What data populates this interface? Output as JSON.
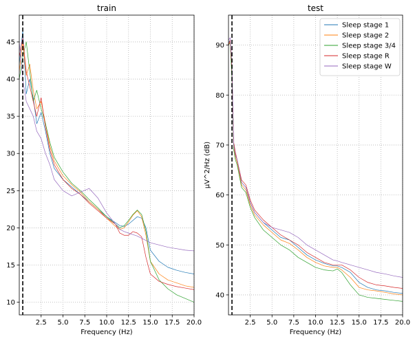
{
  "chart_data": [
    {
      "type": "line",
      "title": "train",
      "xlabel": "Frequency (Hz)",
      "ylabel": "",
      "xlim": [
        0.0,
        20.0
      ],
      "ylim": [
        8.3,
        48.6
      ],
      "xticks": [
        2.5,
        5.0,
        7.5,
        10.0,
        12.5,
        15.0,
        17.5,
        20.0
      ],
      "xtick_labels": [
        "2.5",
        "5.0",
        "7.5",
        "10.0",
        "12.5",
        "15.0",
        "17.5",
        "20.0"
      ],
      "yticks": [
        10,
        15,
        20,
        25,
        30,
        35,
        40,
        45
      ],
      "ytick_labels": [
        "10",
        "15",
        "20",
        "25",
        "30",
        "35",
        "40",
        "45"
      ],
      "grid": true,
      "vline_x": 0.4,
      "legend": false,
      "series": [
        {
          "color": "#1f77b4",
          "x": [
            0.0,
            0.4,
            0.8,
            1.2,
            1.6,
            2.0,
            2.5,
            3.0,
            3.5,
            4.0,
            5.0,
            6.0,
            7.0,
            8.0,
            9.0,
            10.0,
            11.0,
            11.5,
            12.0,
            12.5,
            13.0,
            13.5,
            14.0,
            14.5,
            15.0,
            16.0,
            17.0,
            18.0,
            19.0,
            20.0
          ],
          "y": [
            42.0,
            46.5,
            38.0,
            40.0,
            37.5,
            34.0,
            35.5,
            33.0,
            30.0,
            28.0,
            26.5,
            25.5,
            24.5,
            23.5,
            22.5,
            21.5,
            20.7,
            20.3,
            20.2,
            20.5,
            21.0,
            21.5,
            21.3,
            20.0,
            17.0,
            15.5,
            14.7,
            14.3,
            14.0,
            13.8
          ]
        },
        {
          "color": "#ff7f0e",
          "x": [
            0.0,
            0.4,
            0.8,
            1.2,
            1.6,
            2.0,
            2.5,
            3.0,
            3.5,
            4.0,
            5.0,
            6.0,
            7.0,
            8.0,
            9.0,
            10.0,
            11.0,
            11.5,
            12.0,
            12.5,
            13.0,
            13.5,
            14.0,
            14.5,
            15.0,
            16.0,
            17.0,
            18.0,
            19.0,
            20.0
          ],
          "y": [
            41.0,
            45.0,
            40.5,
            42.0,
            38.5,
            36.0,
            37.0,
            34.0,
            31.0,
            29.0,
            27.0,
            25.8,
            24.8,
            23.5,
            22.5,
            21.3,
            20.2,
            19.8,
            20.0,
            20.8,
            21.7,
            22.3,
            21.5,
            19.0,
            15.5,
            13.8,
            13.0,
            12.6,
            12.2,
            12.0
          ]
        },
        {
          "color": "#2ca02c",
          "x": [
            0.0,
            0.4,
            0.8,
            1.2,
            1.6,
            2.0,
            2.5,
            3.0,
            3.5,
            4.0,
            5.0,
            6.0,
            7.0,
            8.0,
            9.0,
            10.0,
            11.0,
            11.5,
            12.0,
            12.5,
            13.0,
            13.5,
            14.0,
            14.5,
            15.0,
            16.0,
            17.0,
            18.0,
            19.0,
            20.0
          ],
          "y": [
            40.0,
            43.0,
            45.0,
            41.0,
            37.0,
            38.5,
            36.0,
            34.0,
            31.5,
            29.5,
            27.5,
            26.0,
            25.0,
            23.8,
            22.7,
            21.5,
            20.5,
            20.0,
            20.3,
            21.0,
            21.8,
            22.4,
            21.8,
            19.5,
            15.5,
            13.0,
            11.8,
            11.0,
            10.5,
            10.0
          ]
        },
        {
          "color": "#d62728",
          "x": [
            0.0,
            0.4,
            0.8,
            1.2,
            1.6,
            2.0,
            2.5,
            3.0,
            3.5,
            4.0,
            5.0,
            6.0,
            7.0,
            8.0,
            9.0,
            10.0,
            11.0,
            11.5,
            12.0,
            12.5,
            13.0,
            13.5,
            14.0,
            14.5,
            15.0,
            16.0,
            17.0,
            18.0,
            19.0,
            20.0
          ],
          "y": [
            43.0,
            45.5,
            41.0,
            39.0,
            37.0,
            35.0,
            37.5,
            33.5,
            30.5,
            28.5,
            26.5,
            25.3,
            24.5,
            23.3,
            22.3,
            21.3,
            20.5,
            19.3,
            19.0,
            19.0,
            19.5,
            19.3,
            18.8,
            16.0,
            13.8,
            12.8,
            12.4,
            12.1,
            11.9,
            11.7
          ]
        },
        {
          "color": "#9467bd",
          "x": [
            0.0,
            0.4,
            0.8,
            1.2,
            1.6,
            2.0,
            2.5,
            3.0,
            3.5,
            4.0,
            5.0,
            6.0,
            7.0,
            8.0,
            9.0,
            10.0,
            11.0,
            11.5,
            12.0,
            12.5,
            13.0,
            13.5,
            14.0,
            14.5,
            15.0,
            16.0,
            17.0,
            18.0,
            19.0,
            20.0
          ],
          "y": [
            45.0,
            40.0,
            37.0,
            36.0,
            35.0,
            33.0,
            32.0,
            30.0,
            28.5,
            26.5,
            25.0,
            24.3,
            24.8,
            25.3,
            24.0,
            22.0,
            20.5,
            19.8,
            19.5,
            19.3,
            19.1,
            18.9,
            18.6,
            18.3,
            18.0,
            17.7,
            17.4,
            17.2,
            17.0,
            16.9
          ]
        }
      ]
    },
    {
      "type": "line",
      "title": "test",
      "xlabel": "Frequency (Hz)",
      "ylabel": "µV^2/Hz (dB)",
      "xlim": [
        0.0,
        20.0
      ],
      "ylim": [
        36.0,
        96.0
      ],
      "xticks": [
        2.5,
        5.0,
        7.5,
        10.0,
        12.5,
        15.0,
        17.5,
        20.0
      ],
      "xtick_labels": [
        "2.5",
        "5.0",
        "7.5",
        "10.0",
        "12.5",
        "15.0",
        "17.5",
        "20.0"
      ],
      "yticks": [
        40,
        50,
        60,
        70,
        80,
        90
      ],
      "ytick_labels": [
        "40",
        "50",
        "60",
        "70",
        "80",
        "90"
      ],
      "grid": true,
      "vline_x": 0.4,
      "legend": true,
      "legend_position": "upper right",
      "series": [
        {
          "name": "Sleep stage 1",
          "color": "#1f77b4",
          "x": [
            0.0,
            0.2,
            0.4,
            0.6,
            0.8,
            1.0,
            1.5,
            2.0,
            2.5,
            3.0,
            4.0,
            5.0,
            6.0,
            7.0,
            8.0,
            9.0,
            10.0,
            11.0,
            12.0,
            12.5,
            13.0,
            14.0,
            15.0,
            16.0,
            17.0,
            18.0,
            19.0,
            20.0
          ],
          "y": [
            90.5,
            91.0,
            85.0,
            70.0,
            68.0,
            67.0,
            62.5,
            61.5,
            58.5,
            56.5,
            54.5,
            53.0,
            51.5,
            51.0,
            49.5,
            48.0,
            47.0,
            46.3,
            45.8,
            45.8,
            45.5,
            44.5,
            42.5,
            41.5,
            41.0,
            40.8,
            40.5,
            40.3
          ]
        },
        {
          "name": "Sleep stage 2",
          "color": "#ff7f0e",
          "x": [
            0.0,
            0.2,
            0.4,
            0.6,
            0.8,
            1.0,
            1.5,
            2.0,
            2.5,
            3.0,
            4.0,
            5.0,
            6.0,
            7.0,
            8.0,
            9.0,
            10.0,
            11.0,
            12.0,
            12.5,
            13.0,
            14.0,
            15.0,
            16.0,
            17.0,
            18.0,
            19.0,
            20.0
          ],
          "y": [
            90.0,
            91.0,
            84.0,
            69.5,
            67.5,
            66.5,
            62.0,
            61.0,
            58.0,
            56.0,
            54.0,
            52.5,
            51.0,
            50.3,
            49.0,
            47.5,
            46.5,
            45.8,
            45.5,
            45.5,
            45.0,
            43.5,
            41.5,
            41.0,
            40.8,
            40.5,
            40.2,
            40.0
          ]
        },
        {
          "name": "Sleep stage 3/4",
          "color": "#2ca02c",
          "x": [
            0.0,
            0.2,
            0.4,
            0.6,
            0.8,
            1.0,
            1.5,
            2.0,
            2.5,
            3.0,
            4.0,
            5.0,
            6.0,
            7.0,
            8.0,
            9.0,
            10.0,
            11.0,
            12.0,
            12.5,
            13.0,
            14.0,
            15.0,
            16.0,
            17.0,
            18.0,
            19.0,
            20.0
          ],
          "y": [
            90.0,
            90.5,
            83.0,
            69.0,
            67.0,
            66.0,
            61.5,
            60.5,
            57.5,
            55.5,
            53.0,
            51.5,
            50.0,
            49.0,
            47.5,
            46.5,
            45.5,
            45.0,
            44.8,
            45.2,
            44.5,
            42.0,
            40.0,
            39.5,
            39.3,
            39.1,
            38.9,
            38.7
          ]
        },
        {
          "name": "Sleep stage R",
          "color": "#d62728",
          "x": [
            0.0,
            0.2,
            0.4,
            0.6,
            0.8,
            1.0,
            1.5,
            2.0,
            2.5,
            3.0,
            4.0,
            5.0,
            6.0,
            7.0,
            8.0,
            9.0,
            10.0,
            11.0,
            12.0,
            12.5,
            13.0,
            14.0,
            15.0,
            16.0,
            17.0,
            18.0,
            19.0,
            20.0
          ],
          "y": [
            90.0,
            91.0,
            85.0,
            70.5,
            68.5,
            67.0,
            63.0,
            62.0,
            59.0,
            57.0,
            55.0,
            53.5,
            52.0,
            51.0,
            50.0,
            48.5,
            47.5,
            46.5,
            46.0,
            46.0,
            46.0,
            45.0,
            43.5,
            42.5,
            42.0,
            41.8,
            41.5,
            41.3
          ]
        },
        {
          "name": "Sleep stage W",
          "color": "#9467bd",
          "x": [
            0.0,
            0.2,
            0.4,
            0.6,
            0.8,
            1.0,
            1.5,
            2.0,
            2.5,
            3.0,
            4.0,
            5.0,
            6.0,
            7.0,
            8.0,
            9.0,
            10.0,
            11.0,
            12.0,
            12.5,
            13.0,
            14.0,
            15.0,
            16.0,
            17.0,
            18.0,
            19.0,
            20.0
          ],
          "y": [
            91.0,
            91.5,
            86.0,
            70.0,
            68.0,
            67.0,
            62.5,
            61.5,
            58.5,
            56.5,
            54.5,
            53.5,
            53.0,
            52.5,
            51.5,
            50.0,
            49.0,
            48.0,
            47.0,
            46.8,
            46.5,
            46.0,
            45.5,
            45.0,
            44.5,
            44.2,
            43.8,
            43.5
          ]
        }
      ]
    }
  ]
}
